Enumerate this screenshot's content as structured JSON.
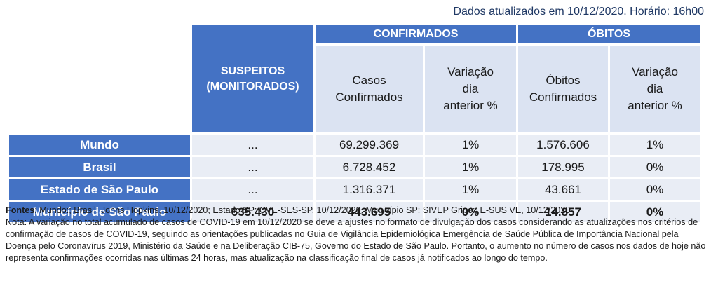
{
  "updated_text": "Dados atualizados em 10/12/2020.  Horário: 16h00",
  "headers": {
    "group_confirmados": "CONFIRMADOS",
    "group_obitos": "ÓBITOS",
    "suspeitos_line1": "SUSPEITOS",
    "suspeitos_line2": "(MONITORADOS)",
    "casos_line1": "Casos",
    "casos_line2": "Confirmados",
    "var1_line1": "Variação",
    "var1_line2": "dia",
    "var1_line3": "anterior %",
    "obitos_line1": "Óbitos",
    "obitos_line2": "Confirmados",
    "var2_line1": "Variação",
    "var2_line2": "dia",
    "var2_line3": "anterior %"
  },
  "rows": [
    {
      "label": "Mundo",
      "suspeitos": "...",
      "casos": "69.299.369",
      "var_casos": "1%",
      "obitos": "1.576.606",
      "var_obitos": "1%"
    },
    {
      "label": "Brasil",
      "suspeitos": "...",
      "casos": "6.728.452",
      "var_casos": "1%",
      "obitos": "178.995",
      "var_obitos": "0%"
    },
    {
      "label": "Estado de São Paulo",
      "suspeitos": "...",
      "casos": "1.316.371",
      "var_casos": "1%",
      "obitos": "43.661",
      "var_obitos": "0%"
    },
    {
      "label": "Município de São Paulo",
      "suspeitos": "635.430",
      "casos": "443.695",
      "var_casos": "0%",
      "obitos": "14.857",
      "var_obitos": "0%"
    }
  ],
  "footer": {
    "fontes_label": "Fontes",
    "fontes_text": ": Mundo:; Brasil: Johns Hopkins, 10/12/2020; Estado SP: CVE-SES-SP, 10/12/2020. Município SP: SIVEP Gripe:; E-SUS VE, 10/12/2020",
    "nota_text": "Nota: A variação no total acumulado de casos de COVID-19 em 10/12/2020 se deve a ajustes no formato de divulgação dos casos considerando as atualizações nos critérios de confirmação de casos de COVID-19, seguindo as orientações publicadas no Guia de Vigilância Epidemiológica Emergência de Saúde Pública de Importância Nacional pela Doença pelo Coronavírus 2019, Ministério da Saúde e na Deliberação CIB-75, Governo do Estado de São Paulo. Portanto, o aumento no número de casos nos dados de hoje não representa confirmações ocorridas nas últimas 24 horas, mas atualização na classificação final de casos já notificados ao longo do tempo."
  }
}
